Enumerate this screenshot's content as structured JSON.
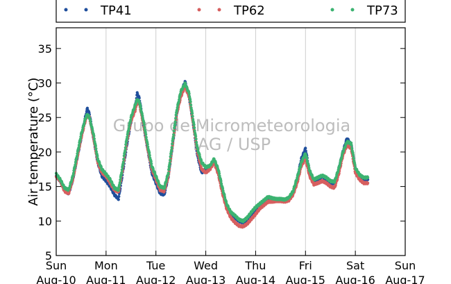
{
  "chart_data": {
    "type": "scatter",
    "ylabel": "Air temperature (°C)",
    "ylim": [
      5,
      38
    ],
    "yticks": [
      5,
      10,
      15,
      20,
      25,
      30,
      35
    ],
    "xlim_hours": [
      0,
      168
    ],
    "x_ticks": [
      {
        "day": "Sun",
        "date": "Aug-10"
      },
      {
        "day": "Mon",
        "date": "Aug-11"
      },
      {
        "day": "Tue",
        "date": "Aug-12"
      },
      {
        "day": "Wed",
        "date": "Aug-13"
      },
      {
        "day": "Thu",
        "date": "Aug-14"
      },
      {
        "day": "Fri",
        "date": "Aug-15"
      },
      {
        "day": "Sat",
        "date": "Aug-16"
      },
      {
        "day": "Sun",
        "date": "Aug-17"
      }
    ],
    "grid": "vertical",
    "legend_placement": "top",
    "watermark": [
      "Grupo de Micrometeorologia",
      "IAG / USP"
    ],
    "series": [
      {
        "name": "TP41",
        "color": "#1f4e9c",
        "points": [
          [
            0,
            16.5
          ],
          [
            2,
            15.8
          ],
          [
            4,
            14.5
          ],
          [
            6,
            14.0
          ],
          [
            8,
            16.0
          ],
          [
            10,
            19.0
          ],
          [
            12,
            22.0
          ],
          [
            14,
            25.0
          ],
          [
            15,
            26.3
          ],
          [
            16,
            25.5
          ],
          [
            18,
            22.0
          ],
          [
            20,
            18.5
          ],
          [
            22,
            16.5
          ],
          [
            24,
            15.8
          ],
          [
            26,
            15.0
          ],
          [
            28,
            13.8
          ],
          [
            30,
            13.2
          ],
          [
            32,
            17.0
          ],
          [
            34,
            21.0
          ],
          [
            36,
            24.5
          ],
          [
            38,
            26.5
          ],
          [
            39,
            28.5
          ],
          [
            40,
            27.8
          ],
          [
            42,
            24.0
          ],
          [
            44,
            20.5
          ],
          [
            46,
            17.0
          ],
          [
            48,
            15.5
          ],
          [
            50,
            14.0
          ],
          [
            52,
            13.8
          ],
          [
            54,
            16.5
          ],
          [
            56,
            21.0
          ],
          [
            58,
            25.5
          ],
          [
            60,
            28.5
          ],
          [
            62,
            30.2
          ],
          [
            64,
            28.0
          ],
          [
            66,
            24.0
          ],
          [
            68,
            19.5
          ],
          [
            70,
            17.0
          ],
          [
            72,
            17.5
          ],
          [
            74,
            17.8
          ],
          [
            76,
            18.8
          ],
          [
            78,
            17.0
          ],
          [
            80,
            14.5
          ],
          [
            82,
            12.0
          ],
          [
            84,
            11.0
          ],
          [
            86,
            10.5
          ],
          [
            88,
            10.0
          ],
          [
            90,
            9.8
          ],
          [
            92,
            10.2
          ],
          [
            94,
            11.0
          ],
          [
            96,
            11.5
          ],
          [
            98,
            12.3
          ],
          [
            100,
            12.8
          ],
          [
            102,
            13.2
          ],
          [
            104,
            13.0
          ],
          [
            106,
            13.0
          ],
          [
            108,
            13.0
          ],
          [
            110,
            12.9
          ],
          [
            112,
            13.2
          ],
          [
            114,
            14.0
          ],
          [
            116,
            16.0
          ],
          [
            118,
            19.0
          ],
          [
            120,
            20.5
          ],
          [
            122,
            17.0
          ],
          [
            124,
            15.8
          ],
          [
            126,
            16.0
          ],
          [
            128,
            16.5
          ],
          [
            130,
            16.0
          ],
          [
            132,
            15.5
          ],
          [
            134,
            15.5
          ],
          [
            136,
            17.5
          ],
          [
            138,
            20.0
          ],
          [
            140,
            22.0
          ],
          [
            142,
            21.0
          ],
          [
            144,
            17.5
          ],
          [
            146,
            16.5
          ],
          [
            148,
            16.0
          ],
          [
            150,
            16.0
          ]
        ]
      },
      {
        "name": "TP62",
        "color": "#d65f5f",
        "points": [
          [
            0,
            16.5
          ],
          [
            2,
            15.8
          ],
          [
            4,
            14.3
          ],
          [
            6,
            14.0
          ],
          [
            8,
            16.0
          ],
          [
            10,
            19.0
          ],
          [
            12,
            22.0
          ],
          [
            14,
            24.5
          ],
          [
            15,
            25.3
          ],
          [
            16,
            25.0
          ],
          [
            18,
            22.0
          ],
          [
            20,
            18.5
          ],
          [
            22,
            17.0
          ],
          [
            24,
            16.5
          ],
          [
            26,
            15.5
          ],
          [
            28,
            14.5
          ],
          [
            30,
            14.2
          ],
          [
            32,
            17.5
          ],
          [
            34,
            21.5
          ],
          [
            36,
            24.5
          ],
          [
            38,
            26.0
          ],
          [
            39,
            27.2
          ],
          [
            40,
            27.0
          ],
          [
            42,
            24.0
          ],
          [
            44,
            20.5
          ],
          [
            46,
            17.5
          ],
          [
            48,
            16.0
          ],
          [
            50,
            14.5
          ],
          [
            52,
            14.3
          ],
          [
            54,
            16.5
          ],
          [
            56,
            21.0
          ],
          [
            58,
            25.5
          ],
          [
            60,
            28.0
          ],
          [
            62,
            29.5
          ],
          [
            64,
            28.0
          ],
          [
            66,
            24.0
          ],
          [
            68,
            20.0
          ],
          [
            70,
            17.5
          ],
          [
            72,
            17.0
          ],
          [
            74,
            17.5
          ],
          [
            76,
            18.5
          ],
          [
            78,
            16.8
          ],
          [
            80,
            14.0
          ],
          [
            82,
            11.8
          ],
          [
            84,
            10.5
          ],
          [
            86,
            9.8
          ],
          [
            88,
            9.3
          ],
          [
            90,
            9.2
          ],
          [
            92,
            9.6
          ],
          [
            94,
            10.3
          ],
          [
            96,
            11.0
          ],
          [
            98,
            11.8
          ],
          [
            100,
            12.3
          ],
          [
            102,
            12.8
          ],
          [
            104,
            12.8
          ],
          [
            106,
            12.9
          ],
          [
            108,
            12.9
          ],
          [
            110,
            12.8
          ],
          [
            112,
            13.0
          ],
          [
            114,
            13.8
          ],
          [
            116,
            15.5
          ],
          [
            118,
            18.0
          ],
          [
            120,
            19.0
          ],
          [
            122,
            16.5
          ],
          [
            124,
            15.3
          ],
          [
            126,
            15.5
          ],
          [
            128,
            15.8
          ],
          [
            130,
            15.5
          ],
          [
            132,
            15.0
          ],
          [
            134,
            14.8
          ],
          [
            136,
            16.8
          ],
          [
            138,
            19.5
          ],
          [
            140,
            21.0
          ],
          [
            142,
            20.5
          ],
          [
            144,
            17.0
          ],
          [
            146,
            16.0
          ],
          [
            148,
            15.5
          ],
          [
            150,
            15.5
          ]
        ]
      },
      {
        "name": "TP73",
        "color": "#3cb371",
        "points": [
          [
            0,
            16.8
          ],
          [
            2,
            16.0
          ],
          [
            4,
            14.8
          ],
          [
            6,
            14.5
          ],
          [
            8,
            16.5
          ],
          [
            10,
            19.5
          ],
          [
            12,
            22.5
          ],
          [
            14,
            24.8
          ],
          [
            15,
            25.5
          ],
          [
            16,
            25.0
          ],
          [
            18,
            22.5
          ],
          [
            20,
            19.0
          ],
          [
            22,
            17.5
          ],
          [
            24,
            16.8
          ],
          [
            26,
            16.0
          ],
          [
            28,
            14.8
          ],
          [
            30,
            14.5
          ],
          [
            32,
            18.0
          ],
          [
            34,
            22.0
          ],
          [
            36,
            25.0
          ],
          [
            38,
            26.8
          ],
          [
            39,
            27.6
          ],
          [
            40,
            27.3
          ],
          [
            42,
            24.5
          ],
          [
            44,
            21.0
          ],
          [
            46,
            18.0
          ],
          [
            48,
            16.5
          ],
          [
            50,
            15.0
          ],
          [
            52,
            14.8
          ],
          [
            54,
            17.0
          ],
          [
            56,
            21.5
          ],
          [
            58,
            26.0
          ],
          [
            60,
            28.8
          ],
          [
            62,
            29.9
          ],
          [
            64,
            28.5
          ],
          [
            66,
            24.5
          ],
          [
            68,
            20.5
          ],
          [
            70,
            18.5
          ],
          [
            72,
            17.8
          ],
          [
            74,
            18.0
          ],
          [
            76,
            19.0
          ],
          [
            78,
            17.5
          ],
          [
            80,
            14.8
          ],
          [
            82,
            12.5
          ],
          [
            84,
            11.3
          ],
          [
            86,
            10.8
          ],
          [
            88,
            10.2
          ],
          [
            90,
            10.0
          ],
          [
            92,
            10.5
          ],
          [
            94,
            11.3
          ],
          [
            96,
            12.0
          ],
          [
            98,
            12.5
          ],
          [
            100,
            13.0
          ],
          [
            102,
            13.5
          ],
          [
            104,
            13.3
          ],
          [
            106,
            13.2
          ],
          [
            108,
            13.2
          ],
          [
            110,
            13.1
          ],
          [
            112,
            13.4
          ],
          [
            114,
            14.3
          ],
          [
            116,
            16.3
          ],
          [
            118,
            18.5
          ],
          [
            120,
            19.8
          ],
          [
            122,
            17.3
          ],
          [
            124,
            16.0
          ],
          [
            126,
            16.3
          ],
          [
            128,
            16.6
          ],
          [
            130,
            16.3
          ],
          [
            132,
            15.8
          ],
          [
            134,
            15.7
          ],
          [
            136,
            17.6
          ],
          [
            138,
            20.0
          ],
          [
            140,
            21.5
          ],
          [
            142,
            21.2
          ],
          [
            144,
            17.7
          ],
          [
            146,
            16.7
          ],
          [
            148,
            16.3
          ],
          [
            150,
            16.3
          ]
        ]
      }
    ]
  }
}
